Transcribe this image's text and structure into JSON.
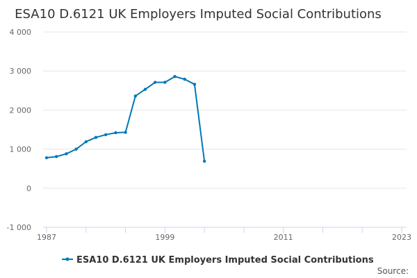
{
  "chart_data": {
    "type": "line",
    "title": "ESA10 D.6121 UK Employers Imputed Social Contributions",
    "xlabel": "",
    "ylabel": "",
    "xlim": [
      1987,
      2023
    ],
    "ylim": [
      -1000,
      4000
    ],
    "x_ticks": [
      "1987",
      "1999",
      "2011",
      "2023"
    ],
    "y_ticks": [
      "-1 000",
      "0",
      "1 000",
      "2 000",
      "3 000",
      "4 000"
    ],
    "grid": "horizontal",
    "legend": "bottom-center",
    "series": [
      {
        "name": "ESA10 D.6121 UK Employers Imputed Social Contributions",
        "color": "#0077b6",
        "x": [
          1987,
          1988,
          1989,
          1990,
          1991,
          1992,
          1993,
          1994,
          1995,
          1996,
          1997,
          1998,
          1999,
          2000,
          2001,
          2002,
          2003
        ],
        "values": [
          780,
          810,
          880,
          1000,
          1190,
          1300,
          1370,
          1420,
          1430,
          2360,
          2530,
          2710,
          2710,
          2860,
          2790,
          2660,
          690
        ]
      }
    ]
  },
  "credits": "Source:"
}
